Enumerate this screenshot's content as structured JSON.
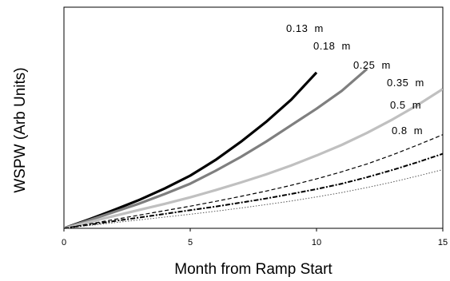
{
  "chart_data": {
    "type": "line",
    "xlabel": "Month from Ramp Start",
    "ylabel": "WSPW (Arb Units)",
    "xlim": [
      0,
      15
    ],
    "ylim": [
      0,
      1.1
    ],
    "x_ticks": [
      "0",
      "5",
      "10",
      "15"
    ],
    "grid": false,
    "legend": "inline-labels",
    "series": [
      {
        "name": "0.13  m",
        "color": "#000000",
        "style": "solid",
        "x": [
          0,
          1,
          2,
          3,
          4,
          5,
          6,
          7,
          8,
          9,
          10
        ],
        "y": [
          0,
          0.045,
          0.092,
          0.142,
          0.199,
          0.262,
          0.34,
          0.43,
          0.529,
          0.64,
          0.775
        ]
      },
      {
        "name": "0.18  m",
        "color": "#7f7f7f",
        "style": "solid",
        "x": [
          0,
          1,
          2,
          3,
          4,
          5,
          6,
          7,
          8,
          9,
          10,
          11,
          12
        ],
        "y": [
          0,
          0.04,
          0.082,
          0.124,
          0.171,
          0.222,
          0.286,
          0.355,
          0.431,
          0.513,
          0.595,
          0.684,
          0.793
        ]
      },
      {
        "name": "0.25  m",
        "color": "#c0c0c0",
        "style": "solid",
        "x": [
          0,
          1,
          2,
          3,
          4,
          5,
          6,
          7,
          8,
          9,
          10,
          11,
          12,
          13,
          14,
          15
        ],
        "y": [
          0,
          0.031,
          0.062,
          0.092,
          0.122,
          0.154,
          0.19,
          0.228,
          0.268,
          0.313,
          0.362,
          0.415,
          0.475,
          0.541,
          0.613,
          0.693
        ]
      },
      {
        "name": "0.35  m",
        "color": "#000000",
        "style": "dashed",
        "x": [
          0,
          1,
          2,
          3,
          4,
          5,
          6,
          7,
          8,
          9,
          10,
          11,
          12,
          13,
          14,
          15
        ],
        "y": [
          0,
          0.022,
          0.044,
          0.066,
          0.088,
          0.11,
          0.134,
          0.159,
          0.185,
          0.214,
          0.246,
          0.281,
          0.32,
          0.365,
          0.414,
          0.466
        ]
      },
      {
        "name": "0.5  m",
        "color": "#000000",
        "style": "dashdot",
        "x": [
          0,
          1,
          2,
          3,
          4,
          5,
          6,
          7,
          8,
          9,
          10,
          11,
          12,
          13,
          14,
          15
        ],
        "y": [
          0,
          0.018,
          0.036,
          0.054,
          0.072,
          0.09,
          0.108,
          0.128,
          0.148,
          0.171,
          0.195,
          0.222,
          0.254,
          0.29,
          0.329,
          0.371
        ]
      },
      {
        "name": "0.8  m",
        "color": "#555555",
        "style": "dotted",
        "x": [
          0,
          1,
          2,
          3,
          4,
          5,
          6,
          7,
          8,
          9,
          10,
          11,
          12,
          13,
          14,
          15
        ],
        "y": [
          0,
          0.014,
          0.028,
          0.042,
          0.056,
          0.07,
          0.085,
          0.101,
          0.118,
          0.136,
          0.156,
          0.178,
          0.203,
          0.23,
          0.26,
          0.292
        ]
      }
    ]
  }
}
